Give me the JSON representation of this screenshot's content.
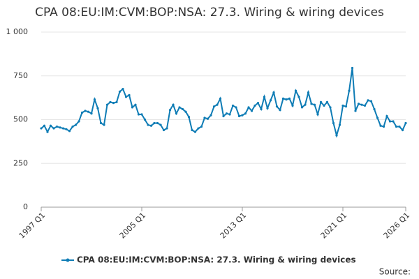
{
  "chart_data": {
    "type": "line",
    "title": "CPA 08:EU:IM:CVM:BOP:NSA: 27.3. Wiring & wiring devices",
    "source": "Source:",
    "categories": [
      "1997 Q1",
      null,
      null,
      null,
      null,
      null,
      null,
      null,
      null,
      null,
      null,
      null,
      null,
      null,
      null,
      null,
      null,
      null,
      null,
      null,
      null,
      null,
      null,
      null,
      null,
      null,
      null,
      null,
      null,
      null,
      null,
      null,
      "2005 Q1",
      null,
      null,
      null,
      null,
      null,
      null,
      null,
      null,
      null,
      null,
      null,
      null,
      null,
      null,
      null,
      null,
      null,
      null,
      null,
      null,
      null,
      null,
      null,
      null,
      null,
      null,
      null,
      null,
      null,
      null,
      null,
      "2013 Q1",
      null,
      null,
      null,
      null,
      null,
      null,
      null,
      null,
      null,
      null,
      null,
      null,
      null,
      null,
      null,
      null,
      null,
      null,
      null,
      null,
      null,
      null,
      null,
      null,
      null,
      null,
      null,
      null,
      null,
      null,
      null,
      "2021 Q1",
      null,
      null,
      null,
      null,
      null,
      null,
      null,
      null,
      null,
      null,
      null,
      null,
      null,
      null,
      null,
      null,
      null,
      null,
      null,
      "2026 Q1"
    ],
    "series": [
      {
        "name": "CPA 08:EU:IM:CVM:BOP:NSA: 27.3. Wiring & wiring devices",
        "color": "#0e7cb5",
        "values": [
          450,
          465,
          430,
          465,
          450,
          460,
          455,
          450,
          445,
          435,
          460,
          470,
          490,
          540,
          550,
          545,
          535,
          615,
          565,
          480,
          470,
          585,
          600,
          595,
          600,
          660,
          675,
          630,
          640,
          570,
          585,
          530,
          530,
          500,
          470,
          465,
          480,
          480,
          470,
          440,
          450,
          555,
          585,
          535,
          570,
          560,
          545,
          515,
          440,
          430,
          450,
          460,
          510,
          505,
          525,
          575,
          585,
          620,
          520,
          535,
          530,
          580,
          570,
          520,
          525,
          535,
          570,
          550,
          580,
          595,
          560,
          630,
          565,
          610,
          655,
          575,
          555,
          620,
          615,
          620,
          580,
          665,
          630,
          570,
          585,
          655,
          590,
          585,
          530,
          600,
          580,
          600,
          570,
          480,
          410,
          470,
          580,
          575,
          665,
          795,
          550,
          590,
          585,
          580,
          610,
          605,
          560,
          510,
          465,
          460,
          520,
          490,
          490,
          460,
          460,
          440,
          480
        ]
      }
    ],
    "ylim": [
      0,
      1000
    ],
    "yticks": [
      0,
      250,
      500,
      750,
      {
        "value": 1000,
        "label": "1 000"
      }
    ],
    "grid": true,
    "legend": "bottom"
  }
}
